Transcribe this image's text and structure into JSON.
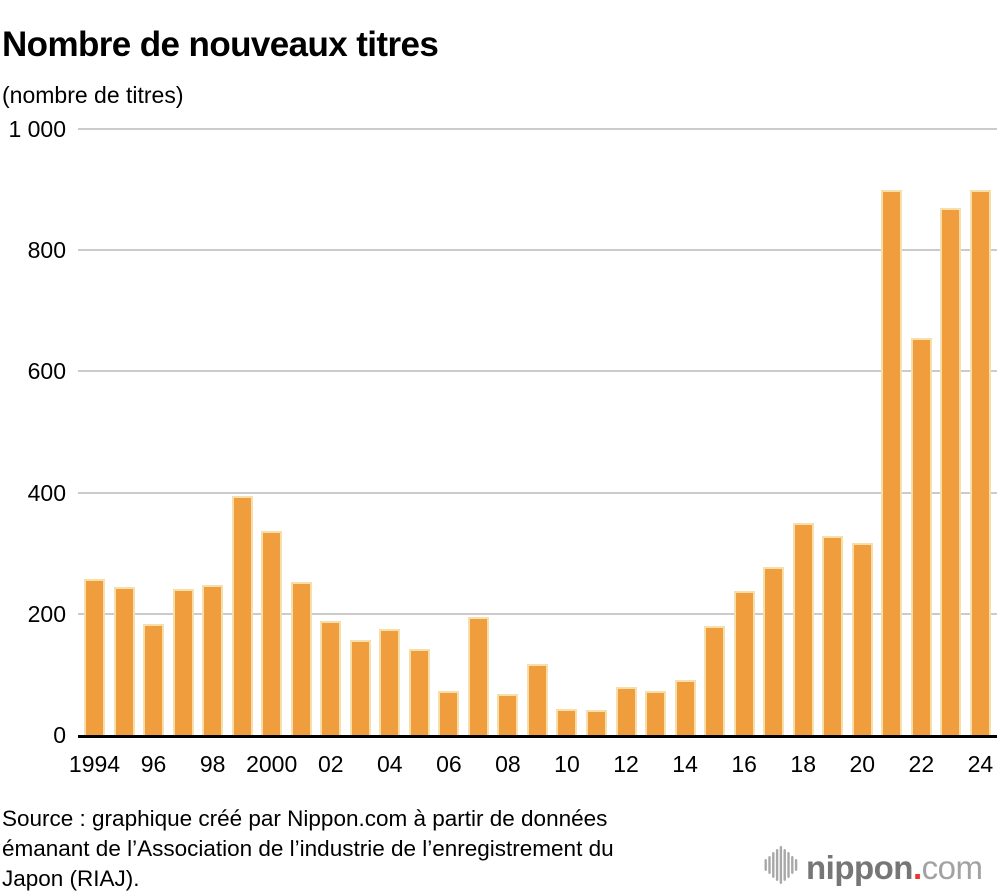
{
  "title": "Nombre de nouveaux titres",
  "unit_label": "(nombre de titres)",
  "source": {
    "line1": "Source : graphique créé par Nippon.com à partir de données",
    "line2": "émanant de l’Association de l’industrie de l’enregistrement du",
    "line3": "Japon (RIAJ)."
  },
  "logo": {
    "icon": "soundwave-icon",
    "name": "nippon",
    "dot": ".",
    "tld": "com"
  },
  "colors": {
    "bar": "#F09D3E",
    "bar_edge": "#F7DFAC",
    "grid": "#CBCBCB",
    "axis": "#000000",
    "text": "#000000",
    "logo_gray": "#A8A8A8",
    "logo_dark_gray": "#767676",
    "logo_light_gray": "#A2A2A2",
    "logo_red": "#E8362C"
  },
  "chart_data": {
    "type": "bar",
    "title": "Nombre de nouveaux titres",
    "ylabel": "(nombre de titres)",
    "xlabel": "",
    "x": [
      1994,
      1995,
      1996,
      1997,
      1998,
      1999,
      2000,
      2001,
      2002,
      2003,
      2004,
      2005,
      2006,
      2007,
      2008,
      2009,
      2010,
      2011,
      2012,
      2013,
      2014,
      2015,
      2016,
      2017,
      2018,
      2019,
      2020,
      2021,
      2022,
      2023,
      2024
    ],
    "values": [
      258,
      245,
      183,
      241,
      248,
      394,
      337,
      253,
      188,
      156,
      175,
      142,
      73,
      194,
      68,
      117,
      43,
      42,
      79,
      72,
      91,
      180,
      238,
      278,
      350,
      328,
      317,
      900,
      655,
      870,
      900
    ],
    "x_tick_labels": [
      "1994",
      "96",
      "98",
      "2000",
      "02",
      "04",
      "06",
      "08",
      "10",
      "12",
      "14",
      "16",
      "18",
      "20",
      "22",
      "24"
    ],
    "x_tick_every": 2,
    "y_ticks": [
      0,
      200,
      400,
      600,
      800,
      1000
    ],
    "y_tick_labels": [
      "0",
      "200",
      "400",
      "600",
      "800",
      "1 000"
    ],
    "ylim": [
      0,
      1000
    ],
    "grid": "horizontal",
    "legend": "none"
  }
}
